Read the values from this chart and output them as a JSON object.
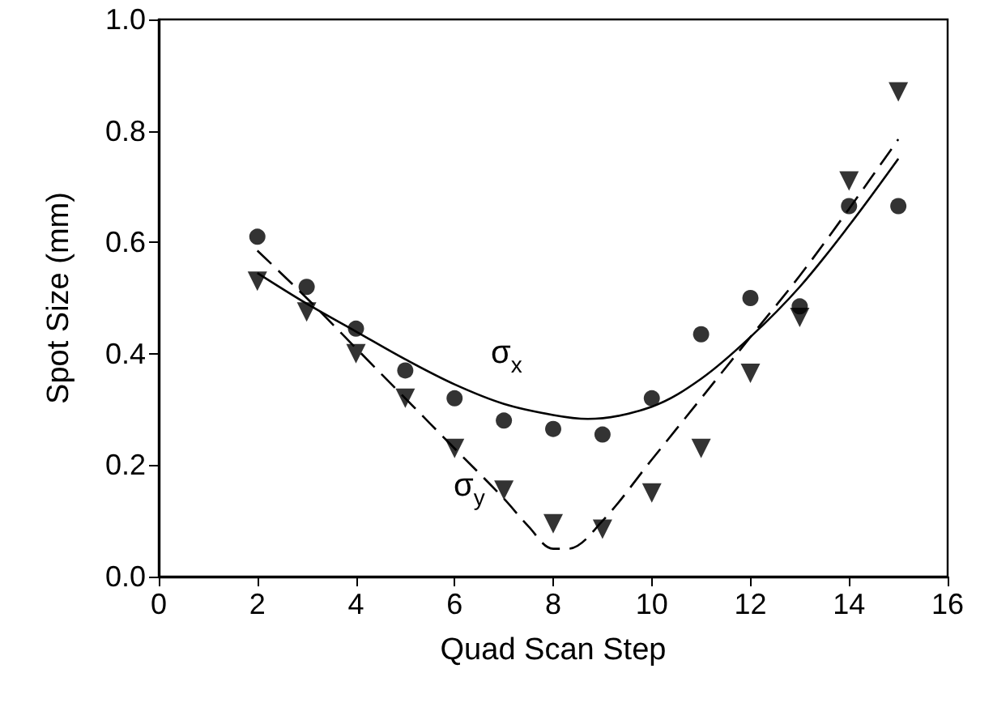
{
  "chart_data": {
    "type": "scatter",
    "xlabel": "Quad Scan Step",
    "ylabel": "Spot Size (mm)",
    "xlim": [
      0,
      16
    ],
    "xticks": [
      0,
      2,
      4,
      6,
      8,
      10,
      12,
      14,
      16
    ],
    "ylim": [
      0,
      1
    ],
    "yticks": [
      {
        "value": 0,
        "label": "0.0"
      },
      {
        "value": 0.2,
        "label": "0.2"
      },
      {
        "value": 0.4,
        "label": "0.4"
      },
      {
        "value": 0.6,
        "label": "0.6"
      },
      {
        "value": 0.8,
        "label": "0.8"
      },
      {
        "value": 1,
        "label": "1.0"
      }
    ],
    "grid": false,
    "series": [
      {
        "marker": "circle",
        "color": "#000000",
        "x": [
          2,
          3,
          4,
          5,
          6,
          7,
          8,
          9,
          10,
          11,
          12,
          13,
          14,
          15
        ],
        "values": [
          0.61,
          0.52,
          0.445,
          0.37,
          0.32,
          0.28,
          0.265,
          0.255,
          0.32,
          0.435,
          0.5,
          0.485,
          0.665,
          0.665
        ]
      },
      {
        "marker": "triangle-down",
        "color": "#000000",
        "x": [
          2,
          3,
          4,
          5,
          6,
          7,
          8,
          9,
          10,
          11,
          12,
          13,
          14,
          15
        ],
        "values": [
          0.53,
          0.475,
          0.4,
          0.32,
          0.23,
          0.155,
          0.095,
          0.085,
          0.15,
          0.23,
          0.365,
          0.465,
          0.71,
          0.87
        ]
      },
      {
        "type": "line",
        "marker": "none",
        "line_style": "solid",
        "color": "#000000",
        "x": [
          2,
          3,
          4,
          5,
          6,
          7,
          8,
          8.7,
          10,
          11,
          12,
          13,
          14,
          15
        ],
        "values": [
          0.545,
          0.49,
          0.44,
          0.39,
          0.345,
          0.31,
          0.29,
          0.283,
          0.305,
          0.355,
          0.43,
          0.52,
          0.63,
          0.75
        ]
      },
      {
        "type": "line",
        "marker": "none",
        "line_style": "dashed",
        "color": "#000000",
        "x": [
          2,
          3,
          4,
          5,
          6,
          7,
          7.5,
          8,
          8.3,
          9,
          10,
          11,
          12,
          13,
          14,
          15
        ],
        "values": [
          0.585,
          0.5,
          0.41,
          0.32,
          0.23,
          0.14,
          0.09,
          0.05,
          0.05,
          0.1,
          0.21,
          0.32,
          0.43,
          0.54,
          0.66,
          0.785
        ]
      }
    ],
    "annotations": [
      "σ$_{x}$",
      "σ$_{y}$"
    ]
  }
}
